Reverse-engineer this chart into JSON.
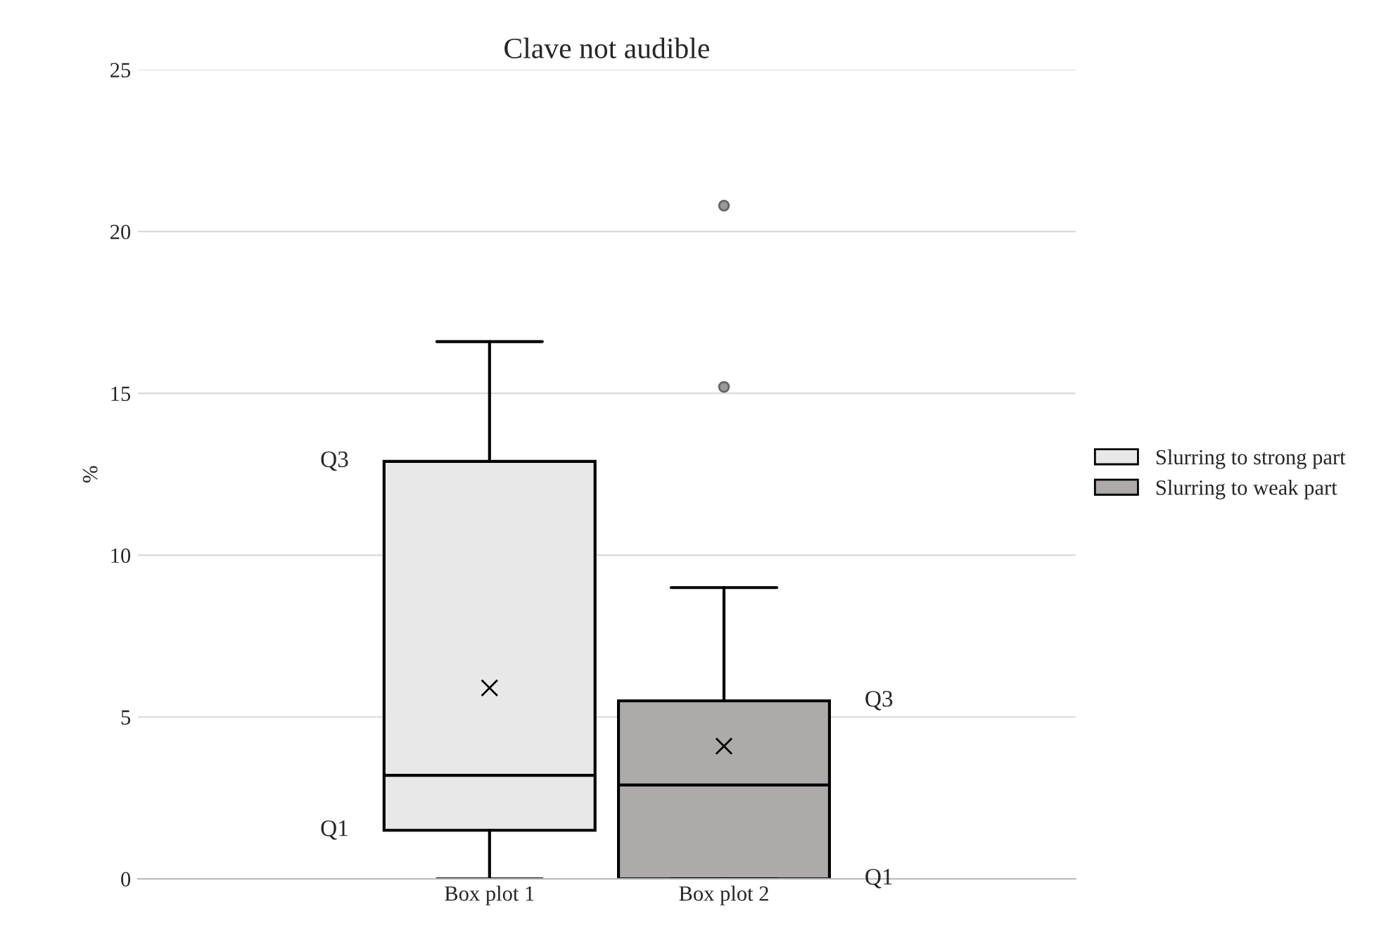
{
  "chart_data": {
    "type": "box",
    "title": "Clave not audible",
    "ylabel": "%",
    "categories": [
      "Box plot 1",
      "Box plot 2"
    ],
    "series": [
      {
        "name": "Slurring to strong part",
        "color": "#e8e8e8",
        "boxes": [
          {
            "low": 0,
            "q1": 1.5,
            "median": 3.2,
            "q3": 12.9,
            "high": 16.6,
            "mean": 5.9
          },
          null
        ]
      },
      {
        "name": "Slurring to weak part",
        "color": "#aeaaaa",
        "boxes": [
          null,
          {
            "low": 0,
            "q1": 0,
            "median": 2.9,
            "q3": 5.5,
            "high": 9.0,
            "mean": 4.1,
            "outliers": [
              15.2,
              20.8
            ]
          }
        ]
      }
    ],
    "ylim": [
      0,
      25
    ],
    "yticks": [
      0,
      5,
      10,
      15,
      20,
      25
    ],
    "grid": "y",
    "legend": "right",
    "annotations": [
      "Q3",
      "Q1",
      "Q3",
      "Q1"
    ]
  }
}
